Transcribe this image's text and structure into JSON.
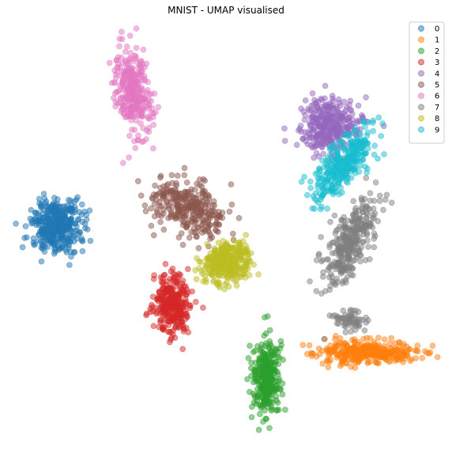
{
  "chart_data": {
    "type": "scatter",
    "title": "MNIST - UMAP visualised",
    "xlabel": "",
    "ylabel": "",
    "axes_visible": false,
    "grid": false,
    "legend_position": "top-right",
    "marker_alpha": 0.5,
    "series": [
      {
        "name": "0",
        "color": "#1f77b4",
        "clusters": [
          {
            "cx": 72,
            "cy": 285,
            "rx": 38,
            "ry": 40,
            "count": 380
          }
        ]
      },
      {
        "name": "1",
        "color": "#ff7f0e",
        "clusters": [
          {
            "cx": 462,
            "cy": 445,
            "rx": 75,
            "ry": 16,
            "count": 360
          }
        ]
      },
      {
        "name": "2",
        "color": "#2ca02c",
        "clusters": [
          {
            "cx": 338,
            "cy": 478,
            "rx": 22,
            "ry": 55,
            "count": 320
          }
        ]
      },
      {
        "name": "3",
        "color": "#d62728",
        "clusters": [
          {
            "cx": 218,
            "cy": 383,
            "rx": 26,
            "ry": 42,
            "count": 320
          }
        ]
      },
      {
        "name": "4",
        "color": "#9467bd",
        "clusters": [
          {
            "cx": 418,
            "cy": 158,
            "rx": 45,
            "ry": 40,
            "count": 330
          }
        ]
      },
      {
        "name": "5",
        "color": "#8c564b",
        "clusters": [
          {
            "cx": 240,
            "cy": 265,
            "rx": 38,
            "ry": 62,
            "count": 300,
            "angle": -62
          }
        ]
      },
      {
        "name": "6",
        "color": "#e377c2",
        "clusters": [
          {
            "cx": 168,
            "cy": 115,
            "rx": 25,
            "ry": 66,
            "count": 320,
            "angle": -8
          }
        ]
      },
      {
        "name": "7",
        "color": "#7f7f7f",
        "clusters": [
          {
            "cx": 443,
            "cy": 305,
            "rx": 28,
            "ry": 70,
            "count": 330,
            "angle": 25
          },
          {
            "cx": 440,
            "cy": 405,
            "rx": 25,
            "ry": 14,
            "count": 60
          }
        ]
      },
      {
        "name": "8",
        "color": "#bcbd22",
        "clusters": [
          {
            "cx": 288,
            "cy": 332,
            "rx": 36,
            "ry": 30,
            "count": 330,
            "angle": -25
          }
        ]
      },
      {
        "name": "9",
        "color": "#17becf",
        "clusters": [
          {
            "cx": 436,
            "cy": 205,
            "rx": 25,
            "ry": 70,
            "count": 320,
            "angle": 40
          }
        ]
      }
    ]
  }
}
